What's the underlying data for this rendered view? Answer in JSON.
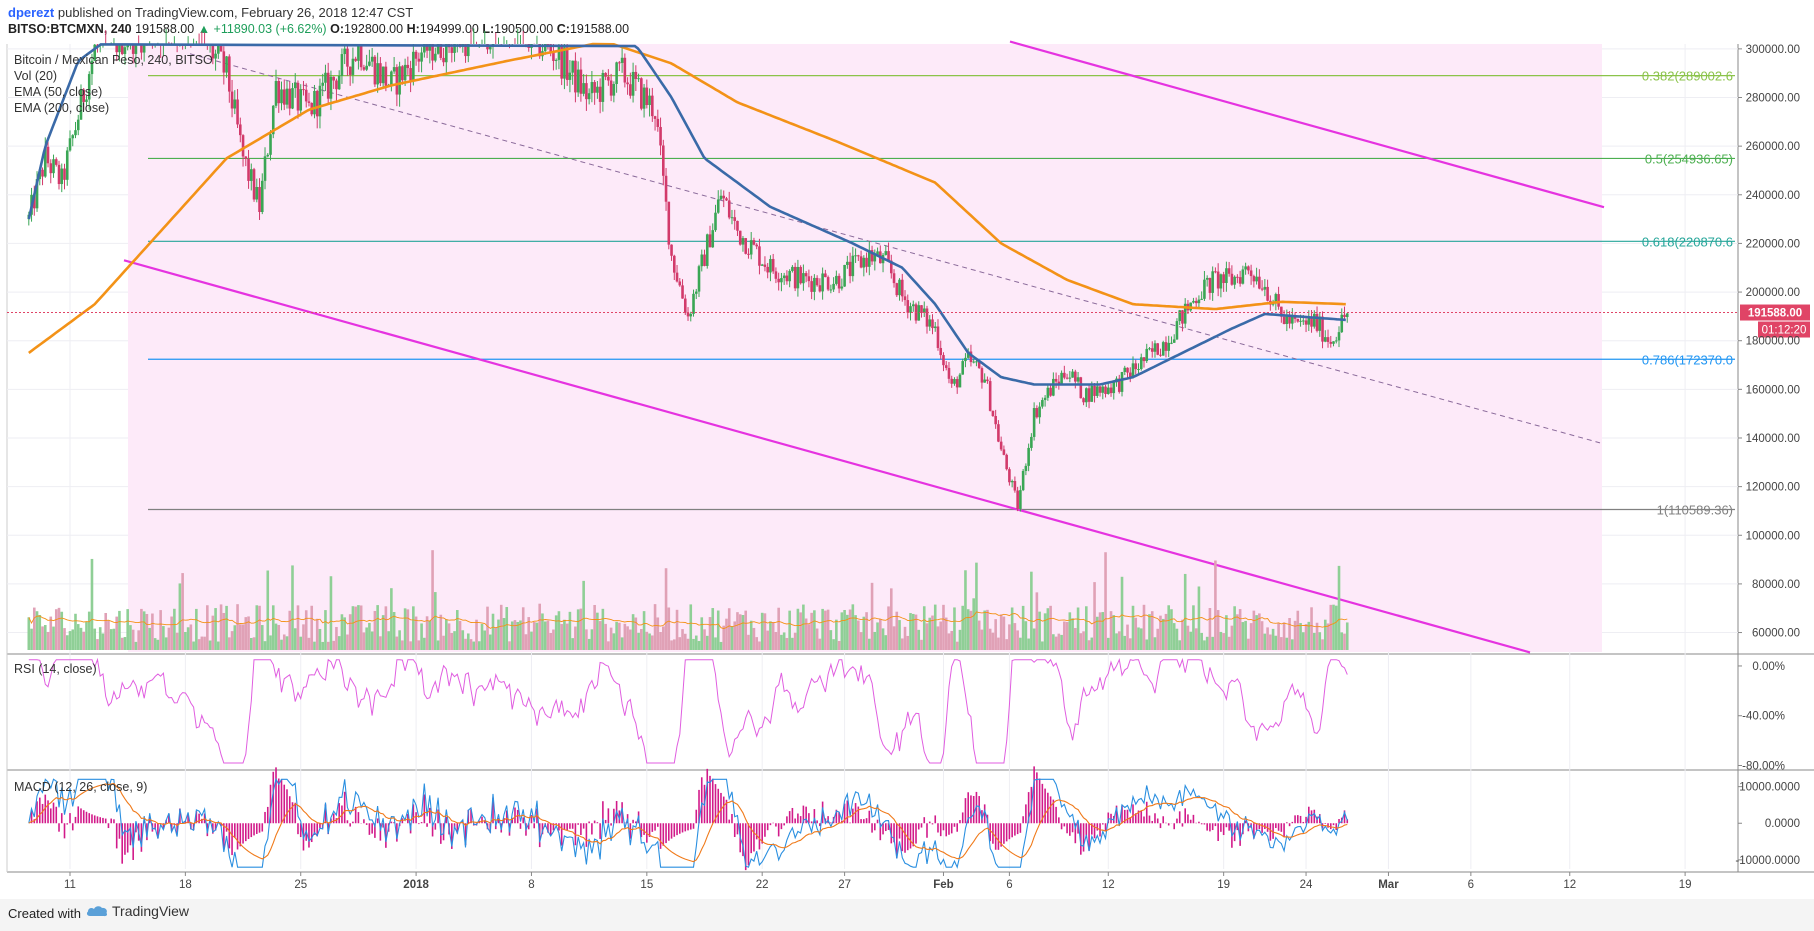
{
  "header": {
    "author": "dperezt",
    "published_text": "published on TradingView.com, February 26, 2018 12:47 CST",
    "symbol_line": "BITSO:BTCMXN, 240",
    "last_price": "191588.00",
    "change": "▲ +11890.03 (+6.62%)",
    "open_label": "O:",
    "open": "192800.00",
    "high_label": "H:",
    "high": "194999.00",
    "low_label": "L:",
    "low": "190500.00",
    "close_label": "C:",
    "close": "191588.00"
  },
  "legend": {
    "title": "Bitcoin / Mexican Peso, 240, BITSO",
    "vol": "Vol (20)",
    "ema50": "EMA (50, close)",
    "ema200": "EMA (200, close)"
  },
  "colors": {
    "up": "#3aa655",
    "down": "#d23a6b",
    "ema50": "#3a6aa8",
    "ema200": "#f39217",
    "channel": "#e533e0",
    "fib_zone": "#fdeaf9",
    "rsi": "#e05ee0",
    "macd_line": "#2a8fe0",
    "signal_line": "#f07a1a",
    "hist": "#d21a8a",
    "price_tag": "#e04466"
  },
  "chart_data": {
    "type": "candlestick",
    "x_tick_labels": [
      "11",
      "18",
      "25",
      "2018",
      "8",
      "15",
      "22",
      "27",
      "Feb",
      "6",
      "12",
      "19",
      "24",
      "Mar",
      "6",
      "12",
      "19"
    ],
    "y_tick_labels": [
      "300000.00",
      "280000.00",
      "260000.00",
      "240000.00",
      "220000.00",
      "200000.00",
      "180000.00",
      "160000.00",
      "140000.00",
      "120000.00",
      "100000.00",
      "80000.00",
      "60000.00"
    ],
    "y_range": [
      52000,
      302000
    ],
    "fibonacci": [
      {
        "label": "0.382(289002.6",
        "value": 289002.6,
        "color": "#8bc34a"
      },
      {
        "label": "0.5(254936.65)",
        "value": 254936.65,
        "color": "#4caf50"
      },
      {
        "label": "0.618(220870.6",
        "value": 220870.6,
        "color": "#26a69a"
      },
      {
        "label": "0.786(172370.0",
        "value": 172370.0,
        "color": "#2196f3"
      },
      {
        "label": "1(110589.36)",
        "value": 110589.36,
        "color": "#808080"
      }
    ],
    "current_price_label": "191588.00",
    "countdown_label": "01:12:20",
    "price_keypoints": [
      [
        "2017-12-08",
        230000
      ],
      [
        "2017-12-09",
        255000
      ],
      [
        "2017-12-10",
        245000
      ],
      [
        "2017-12-12",
        300000
      ],
      [
        "2017-12-14",
        305000
      ],
      [
        "2017-12-18",
        310000
      ],
      [
        "2017-12-20",
        290000
      ],
      [
        "2017-12-21",
        255000
      ],
      [
        "2017-12-22",
        235000
      ],
      [
        "2017-12-23",
        285000
      ],
      [
        "2017-12-25",
        275000
      ],
      [
        "2017-12-28",
        300000
      ],
      [
        "2017-12-30",
        285000
      ],
      [
        "2018-01-01",
        300000
      ],
      [
        "2018-01-04",
        305000
      ],
      [
        "2018-01-06",
        310000
      ],
      [
        "2018-01-09",
        298000
      ],
      [
        "2018-01-11",
        280000
      ],
      [
        "2018-01-13",
        290000
      ],
      [
        "2018-01-15",
        275000
      ],
      [
        "2018-01-16",
        215000
      ],
      [
        "2018-01-17",
        190000
      ],
      [
        "2018-01-18",
        215000
      ],
      [
        "2018-01-19",
        240000
      ],
      [
        "2018-01-20",
        225000
      ],
      [
        "2018-01-22",
        210000
      ],
      [
        "2018-01-24",
        205000
      ],
      [
        "2018-01-26",
        205000
      ],
      [
        "2018-01-28",
        215000
      ],
      [
        "2018-01-29",
        212000
      ],
      [
        "2018-01-30",
        198000
      ],
      [
        "2018-02-01",
        185000
      ],
      [
        "2018-02-02",
        160000
      ],
      [
        "2018-02-03",
        172000
      ],
      [
        "2018-02-04",
        165000
      ],
      [
        "2018-02-05",
        135000
      ],
      [
        "2018-02-06",
        112000
      ],
      [
        "2018-02-07",
        150000
      ],
      [
        "2018-02-08",
        160000
      ],
      [
        "2018-02-09",
        168000
      ],
      [
        "2018-02-10",
        158000
      ],
      [
        "2018-02-11",
        160000
      ],
      [
        "2018-02-12",
        162000
      ],
      [
        "2018-02-13",
        168000
      ],
      [
        "2018-02-15",
        180000
      ],
      [
        "2018-02-16",
        190000
      ],
      [
        "2018-02-17",
        200000
      ],
      [
        "2018-02-18",
        205000
      ],
      [
        "2018-02-19",
        205000
      ],
      [
        "2018-02-20",
        210000
      ],
      [
        "2018-02-21",
        203000
      ],
      [
        "2018-02-22",
        190000
      ],
      [
        "2018-02-23",
        186000
      ],
      [
        "2018-02-24",
        188000
      ],
      [
        "2018-02-25",
        180000
      ],
      [
        "2018-02-26",
        191588
      ]
    ],
    "ema50_keypoints": [
      [
        "2017-12-08",
        230000
      ],
      [
        "2017-12-09",
        260000
      ],
      [
        "2017-12-11",
        295000
      ],
      [
        "2017-12-14",
        310000
      ],
      [
        "2018-01-13",
        305000
      ],
      [
        "2018-01-14",
        300000
      ],
      [
        "2018-01-16",
        280000
      ],
      [
        "2018-01-18",
        255000
      ],
      [
        "2018-01-22",
        235000
      ],
      [
        "2018-01-27",
        220000
      ],
      [
        "2018-01-30",
        210000
      ],
      [
        "2018-02-01",
        195000
      ],
      [
        "2018-02-03",
        175000
      ],
      [
        "2018-02-05",
        165000
      ],
      [
        "2018-02-07",
        162000
      ],
      [
        "2018-02-11",
        162000
      ],
      [
        "2018-02-13",
        165000
      ],
      [
        "2018-02-16",
        175000
      ],
      [
        "2018-02-19",
        185000
      ],
      [
        "2018-02-21",
        191000
      ],
      [
        "2018-02-23",
        190000
      ],
      [
        "2018-02-26",
        188500
      ]
    ],
    "ema200_keypoints": [
      [
        "2017-12-08",
        175000
      ],
      [
        "2017-12-12",
        195000
      ],
      [
        "2017-12-16",
        225000
      ],
      [
        "2017-12-20",
        255000
      ],
      [
        "2017-12-25",
        275000
      ],
      [
        "2017-12-30",
        285000
      ],
      [
        "2018-01-06",
        295000
      ],
      [
        "2018-01-12",
        303000
      ],
      [
        "2018-01-16",
        294000
      ],
      [
        "2018-01-20",
        278000
      ],
      [
        "2018-01-26",
        262000
      ],
      [
        "2018-02-01",
        245000
      ],
      [
        "2018-02-05",
        220000
      ],
      [
        "2018-02-09",
        205000
      ],
      [
        "2018-02-13",
        195000
      ],
      [
        "2018-02-18",
        193000
      ],
      [
        "2018-02-22",
        196000
      ],
      [
        "2018-02-26",
        195000
      ]
    ],
    "rsi": {
      "label": "RSI (14, close)",
      "ticks": [
        "0.00%",
        "-40.00%",
        "-80.00%"
      ],
      "range": [
        -82,
        8
      ]
    },
    "macd": {
      "label": "MACD (12, 26, close, 9)",
      "ticks": [
        "10000.0000",
        "0.0000",
        "-10000.0000"
      ],
      "range": [
        -12500,
        14000
      ]
    }
  },
  "footer": {
    "created_with": "Created with",
    "brand": "TradingView"
  }
}
